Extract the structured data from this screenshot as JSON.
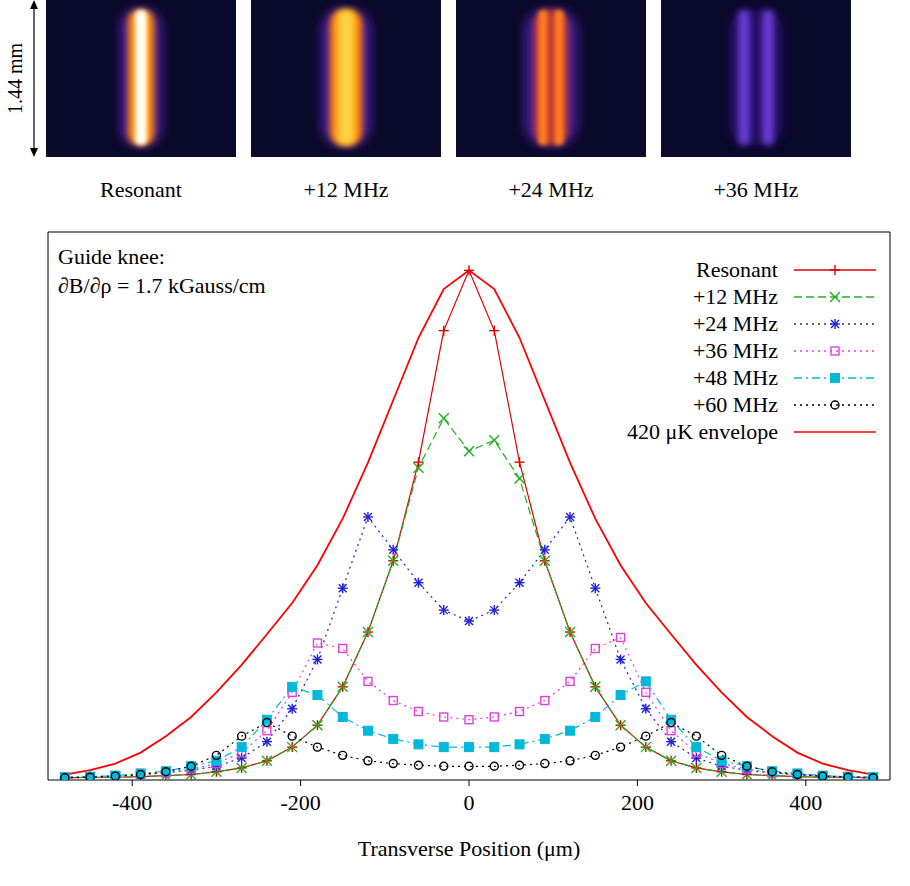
{
  "panels": {
    "scale_label": "1.44 mm",
    "labels": [
      "Resonant",
      "+12 MHz",
      "+24 MHz",
      "+36 MHz"
    ]
  },
  "chart_data": {
    "type": "line",
    "annotations": [
      "Guide knee:",
      "∂B/∂ρ = 1.7 kGauss/cm"
    ],
    "x_label": "Transverse Position (μm)",
    "x": [
      -480,
      -450,
      -420,
      -390,
      -360,
      -330,
      -300,
      -270,
      -240,
      -210,
      -180,
      -150,
      -120,
      -90,
      -60,
      -30,
      0,
      30,
      60,
      90,
      120,
      150,
      180,
      210,
      240,
      270,
      300,
      330,
      360,
      390,
      420,
      450,
      480
    ],
    "xlim": [
      -500,
      500
    ],
    "xticks": [
      -400,
      -200,
      0,
      200,
      400
    ],
    "ylim": [
      0,
      100
    ],
    "tick_labels": "x",
    "legend": "top-right",
    "series": [
      {
        "name": "Resonant",
        "color": "#e00000",
        "marker": "plus",
        "line_style": "solid",
        "values": [
          0.4,
          0.5,
          0.5,
          0.6,
          0.8,
          1,
          1.5,
          2.2,
          3.5,
          6,
          10,
          17,
          27,
          40,
          58,
          82,
          93,
          82,
          58,
          40,
          27,
          17,
          10,
          6,
          3.5,
          2.2,
          1.5,
          1,
          0.8,
          0.6,
          0.5,
          0.5,
          0.4
        ]
      },
      {
        "name": "+12 MHz",
        "color": "#20b020",
        "marker": "cross",
        "line_style": "dashed",
        "values": [
          0.4,
          0.5,
          0.5,
          0.6,
          0.8,
          1,
          1.5,
          2.2,
          3.5,
          6,
          10,
          17,
          27,
          40,
          57,
          66,
          60,
          62,
          55,
          40,
          27,
          17,
          10,
          6,
          3.5,
          2.2,
          1.5,
          1,
          0.8,
          0.6,
          0.5,
          0.5,
          0.4
        ]
      },
      {
        "name": "+24 MHz",
        "color": "#2020d0",
        "marker": "star",
        "line_style": "dotted",
        "values": [
          0.5,
          0.6,
          0.7,
          1,
          1.3,
          1.8,
          2.5,
          4,
          7,
          13,
          22,
          35,
          48,
          42,
          36,
          31,
          29,
          31,
          36,
          42,
          48,
          35,
          22,
          13,
          7,
          4,
          2.5,
          1.8,
          1.3,
          1,
          0.7,
          0.6,
          0.5
        ]
      },
      {
        "name": "+36 MHz",
        "color": "#e040e0",
        "marker": "square",
        "line_style": "dotted",
        "values": [
          0.5,
          0.6,
          0.8,
          1,
          1.3,
          2,
          3,
          5,
          9,
          16,
          25,
          24,
          18,
          14.5,
          12.5,
          11.5,
          11,
          11.5,
          12.5,
          14.5,
          18,
          24,
          26,
          16,
          9,
          5,
          3,
          2,
          1.3,
          1,
          0.8,
          0.6,
          0.5
        ]
      },
      {
        "name": "+48 MHz",
        "color": "#00b8d8",
        "marker": "filled_square",
        "line_style": "dashdot",
        "values": [
          0.5,
          0.6,
          0.8,
          1.2,
          1.6,
          2.5,
          3.5,
          6,
          11,
          17,
          15.5,
          11.5,
          9,
          7.5,
          6.5,
          6,
          6,
          6,
          6.5,
          7.5,
          9,
          11.5,
          15.5,
          18,
          11,
          6,
          3.5,
          2.5,
          1.6,
          1.2,
          0.8,
          0.6,
          0.5
        ]
      },
      {
        "name": "+60 MHz",
        "color": "#000000",
        "marker": "circle",
        "line_style": "dotted",
        "values": [
          0.4,
          0.5,
          0.7,
          1,
          1.5,
          2.5,
          4.5,
          8,
          10.5,
          8,
          6,
          4.5,
          3.5,
          3,
          2.7,
          2.5,
          2.5,
          2.5,
          2.7,
          3,
          3.5,
          4.5,
          6,
          8,
          10.5,
          8,
          4.5,
          2.5,
          1.5,
          1,
          0.7,
          0.5,
          0.4
        ]
      },
      {
        "name": "420 μK envelope",
        "color": "#ff0000",
        "marker": "none",
        "line_style": "solid",
        "values": [
          1,
          1.8,
          3,
          5,
          8,
          11.5,
          16,
          21,
          26.6,
          32.3,
          39.2,
          47.7,
          57.9,
          69.3,
          80.7,
          89.6,
          93,
          89.6,
          80.7,
          69.3,
          57.9,
          47.7,
          39.2,
          32.3,
          26.6,
          21,
          16,
          11.5,
          8,
          5,
          3,
          1.8,
          1
        ]
      }
    ]
  }
}
